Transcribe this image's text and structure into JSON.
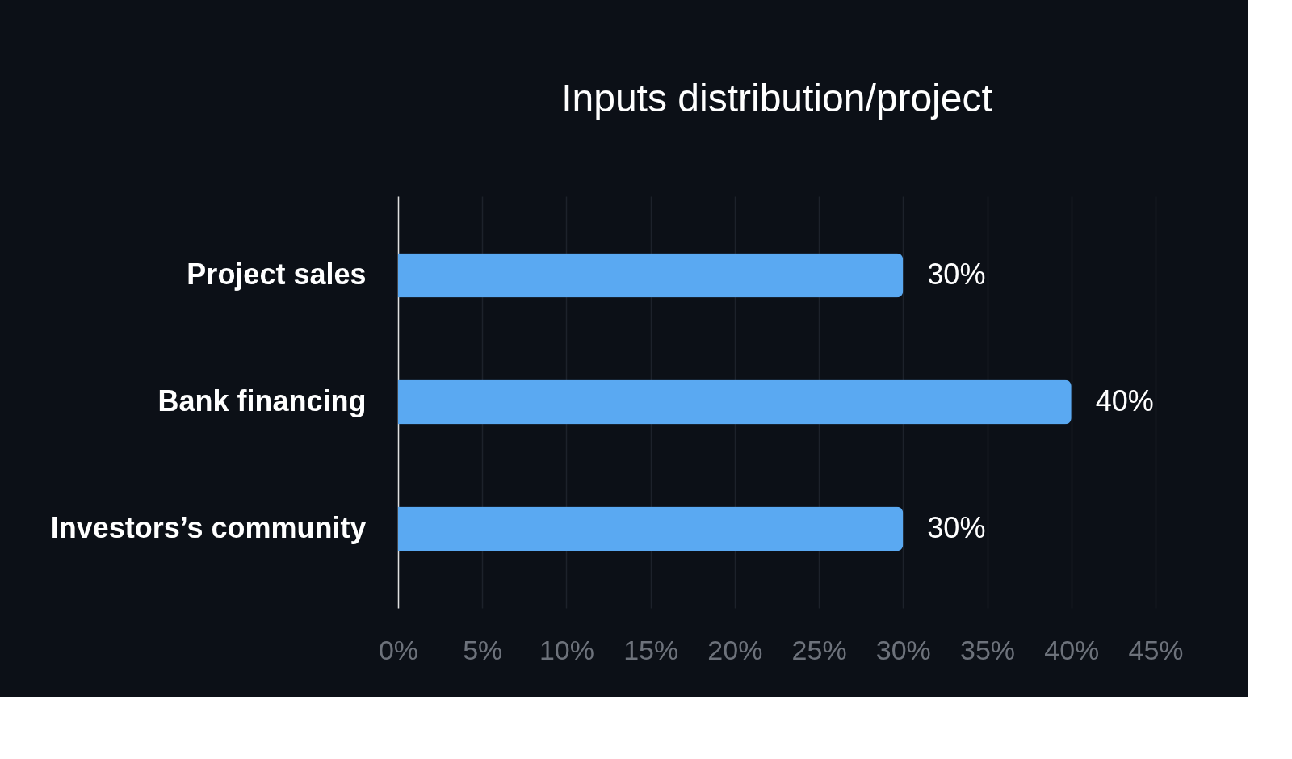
{
  "chart_data": {
    "type": "bar",
    "orientation": "horizontal",
    "title": "Inputs distribution/project",
    "categories": [
      "Project sales",
      "Bank financing",
      "Investors’s community"
    ],
    "values": [
      30,
      40,
      30
    ],
    "color": "#5aa9f2",
    "value_labels": [
      "30%",
      "40%",
      "30%"
    ],
    "xlim": [
      0,
      45
    ],
    "xticks": [
      {
        "value": 0,
        "label": "0%"
      },
      {
        "value": 5,
        "label": "5%"
      },
      {
        "value": 10,
        "label": "10%"
      },
      {
        "value": 15,
        "label": "15%"
      },
      {
        "value": 20,
        "label": "20%"
      },
      {
        "value": 25,
        "label": "25%"
      },
      {
        "value": 30,
        "label": "30%"
      },
      {
        "value": 35,
        "label": "35%"
      },
      {
        "value": 40,
        "label": "40%"
      },
      {
        "value": 45,
        "label": "45%"
      }
    ],
    "grid": "x"
  }
}
